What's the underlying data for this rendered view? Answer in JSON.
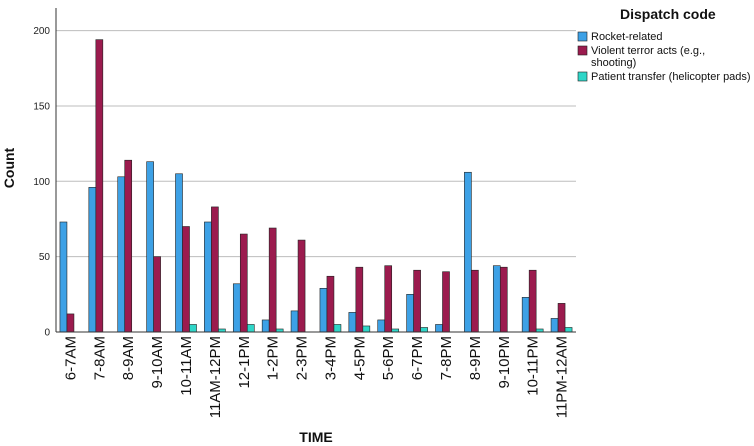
{
  "chart_data": {
    "type": "bar",
    "xlabel": "TIME",
    "ylabel": "Count",
    "ylim": [
      0,
      215
    ],
    "yticks": [
      0,
      50,
      100,
      150,
      200
    ],
    "grid": "horizontal",
    "legend_position": "right",
    "legend_title": "Dispatch code",
    "categories": [
      "6-7AM",
      "7-8AM",
      "8-9AM",
      "9-10AM",
      "10-11AM",
      "11AM-12PM",
      "12-1PM",
      "1-2PM",
      "2-3PM",
      "3-4PM",
      "4-5PM",
      "5-6PM",
      "6-7PM",
      "7-8PM",
      "8-9PM",
      "9-10PM",
      "10-11PM",
      "11PM-12AM"
    ],
    "series": [
      {
        "name": "Rocket-related",
        "color": "#3da1e6",
        "values": [
          73,
          96,
          103,
          113,
          105,
          73,
          32,
          8,
          14,
          29,
          13,
          8,
          25,
          5,
          106,
          44,
          23,
          9
        ]
      },
      {
        "name": "Violent terror acts (e.g., shooting)",
        "legend_lines": [
          "Violent terror acts (e.g.,",
          "shooting)"
        ],
        "color": "#9b1b4e",
        "values": [
          12,
          194,
          114,
          50,
          70,
          83,
          65,
          69,
          61,
          37,
          43,
          44,
          41,
          40,
          41,
          43,
          41,
          19
        ]
      },
      {
        "name": "Patient transfer (helicopter pads)",
        "color": "#2fd6c8",
        "values": [
          0,
          0,
          0,
          0,
          5,
          2,
          5,
          2,
          0,
          5,
          4,
          2,
          3,
          0,
          0,
          0,
          2,
          3
        ]
      }
    ]
  }
}
